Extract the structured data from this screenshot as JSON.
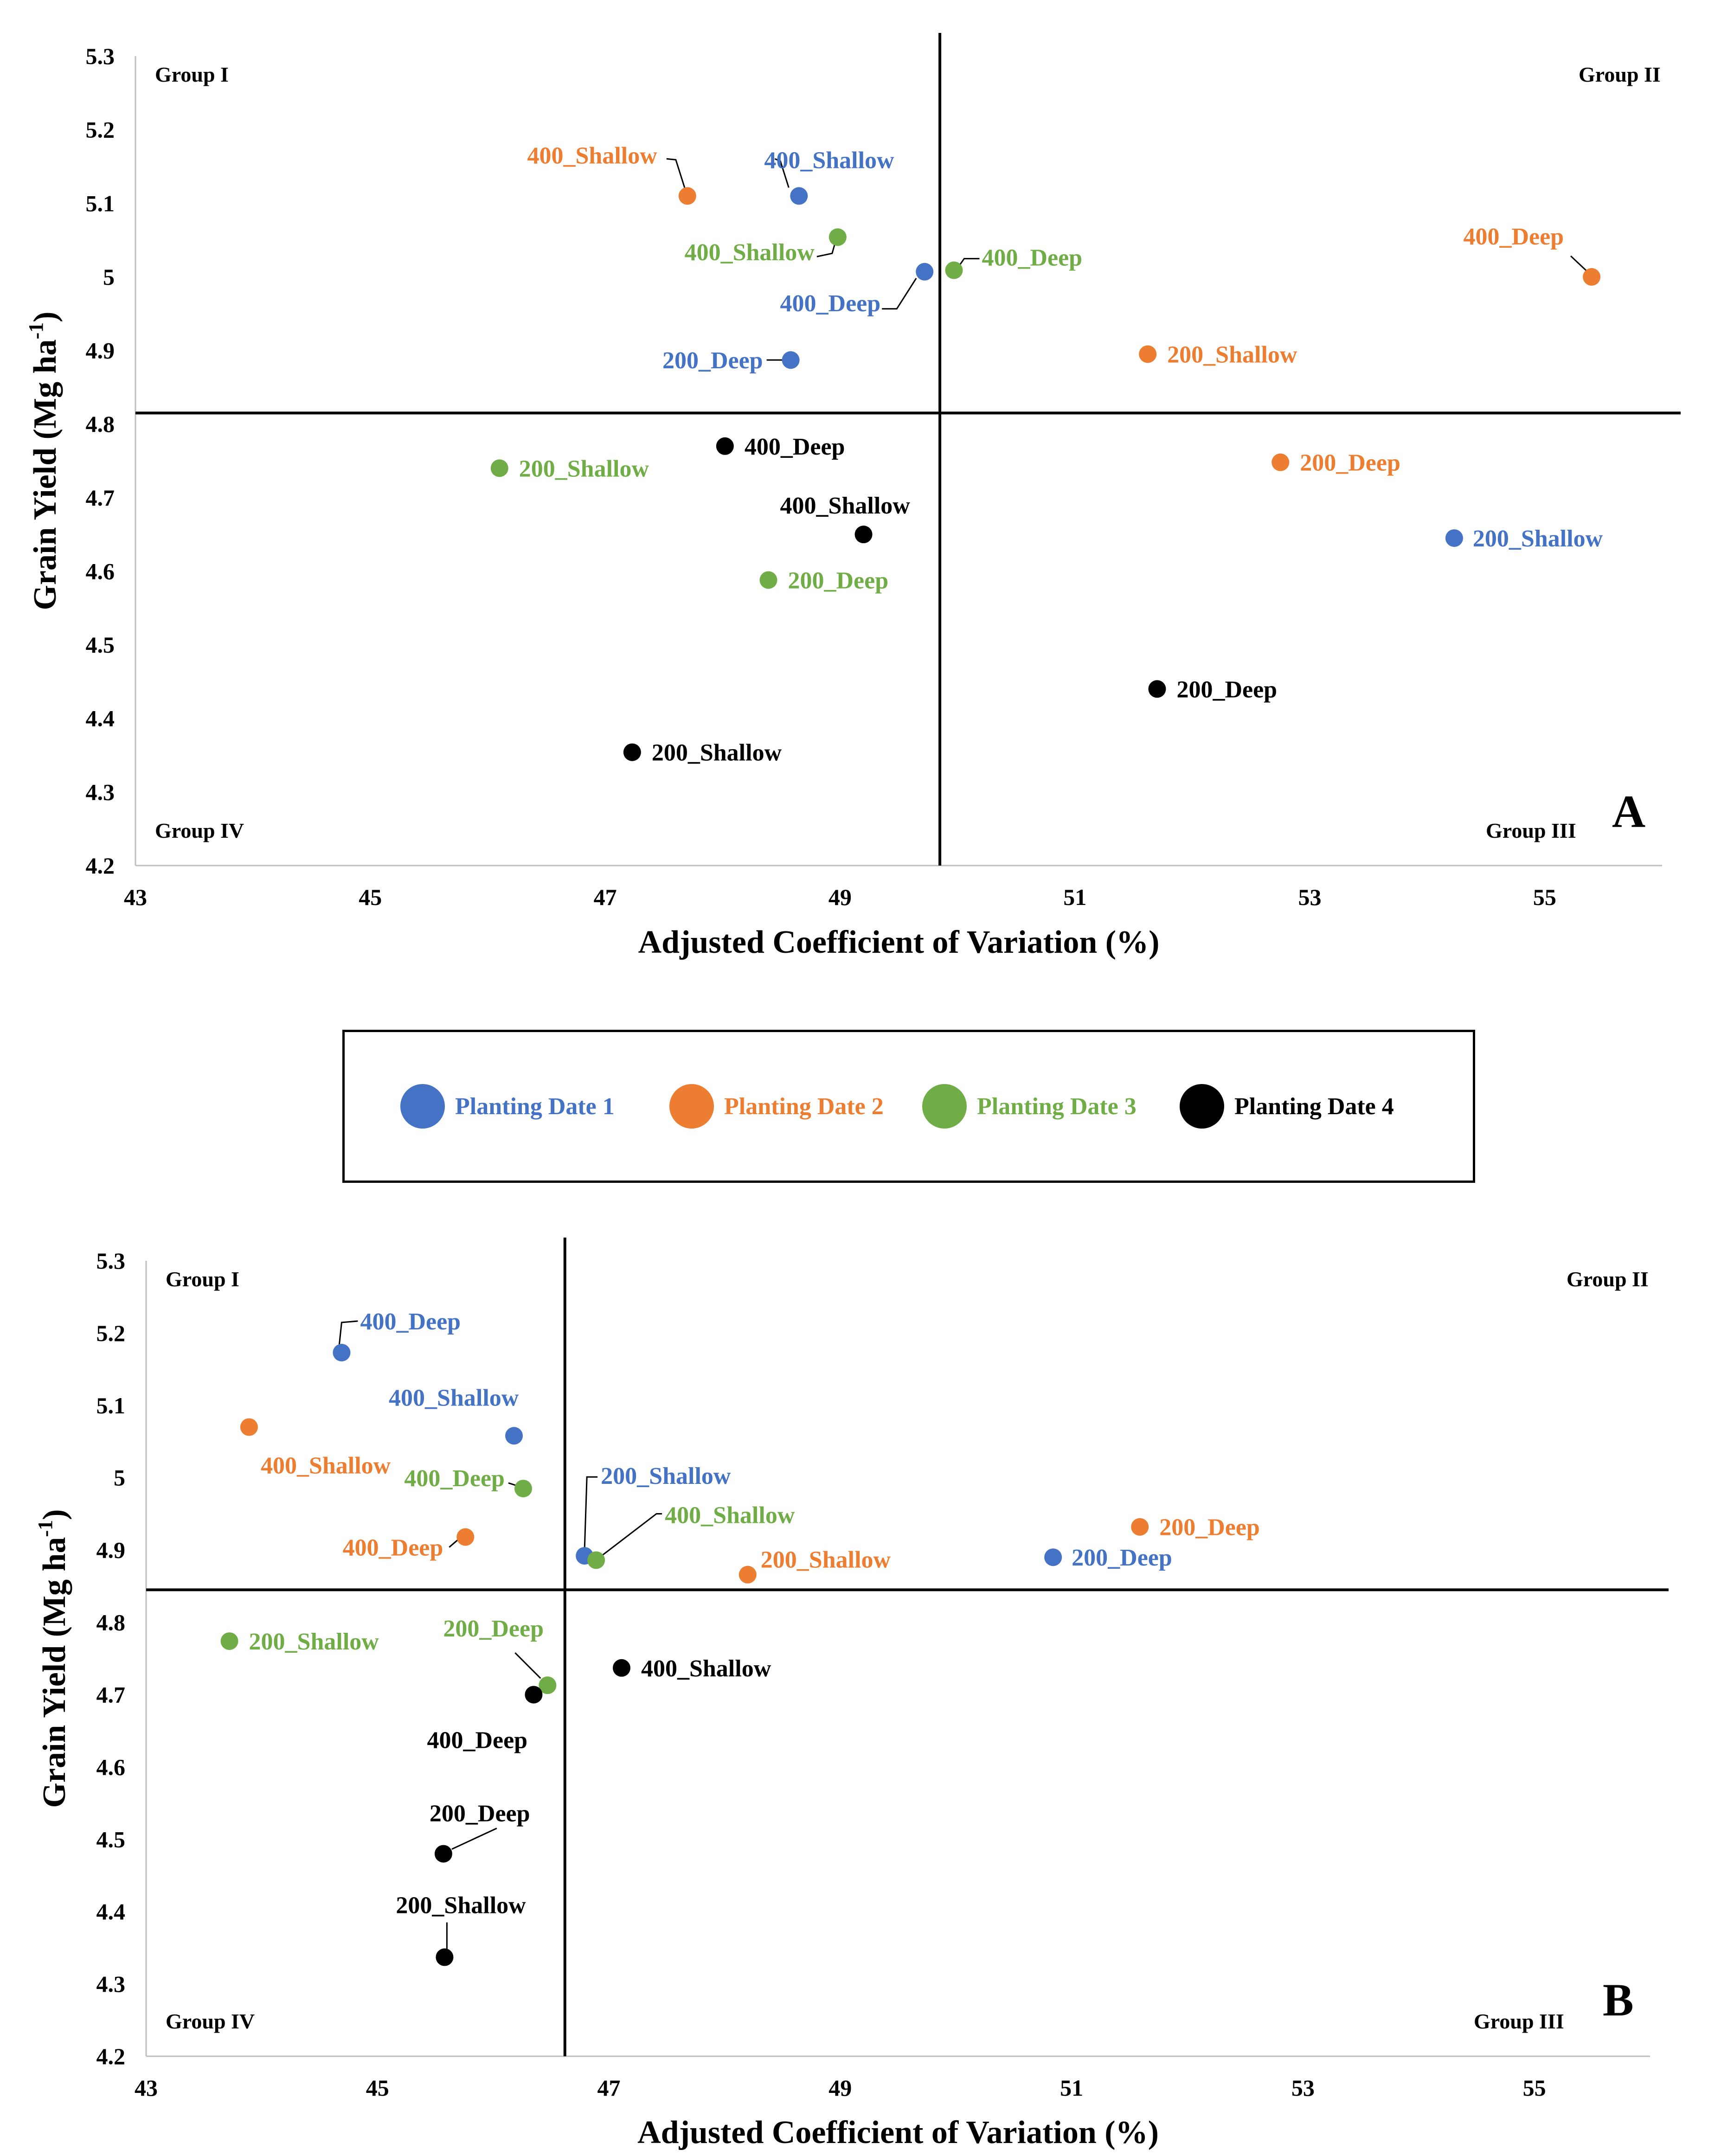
{
  "legend": {
    "items": [
      {
        "label": "Planting Date 1",
        "color": "#4472C4"
      },
      {
        "label": "Planting Date 2",
        "color": "#ED7D31"
      },
      {
        "label": "Planting Date 3",
        "color": "#70AD47"
      },
      {
        "label": "Planting Date 4",
        "color": "#000000"
      }
    ]
  },
  "chart_data": [
    {
      "type": "scatter",
      "panel_letter": "A",
      "xlabel": "Adjusted Coefficient of Variation (%)",
      "ylabel": "Grain Yield (Mg ha",
      "ylabel_sup": "-1",
      "ylabel_close": ")",
      "xlim": [
        43,
        56
      ],
      "ylim": [
        4.2,
        5.3
      ],
      "x_ticks": [
        "43",
        "45",
        "47",
        "49",
        "51",
        "53",
        "55"
      ],
      "y_ticks": [
        "4.2",
        "4.3",
        "4.4",
        "4.5",
        "4.6",
        "4.7",
        "4.8",
        "4.9",
        "5",
        "5.1",
        "5.2",
        "5.3"
      ],
      "ref_x": 49.85,
      "ref_y": 4.815,
      "groups": [
        "Group I",
        "Group II",
        "Group III",
        "Group IV"
      ],
      "points": [
        {
          "series": "Planting Date 1",
          "label": "400_Shallow",
          "x": 48.65,
          "y": 5.11
        },
        {
          "series": "Planting Date 1",
          "label": "400_Deep",
          "x": 49.72,
          "y": 5.007
        },
        {
          "series": "Planting Date 1",
          "label": "200_Deep",
          "x": 48.58,
          "y": 4.887
        },
        {
          "series": "Planting Date 1",
          "label": "200_Shallow",
          "x": 54.23,
          "y": 4.645
        },
        {
          "series": "Planting Date 2",
          "label": "400_Shallow",
          "x": 47.7,
          "y": 5.11
        },
        {
          "series": "Planting Date 2",
          "label": "400_Deep",
          "x": 55.4,
          "y": 5.0
        },
        {
          "series": "Planting Date 2",
          "label": "200_Shallow",
          "x": 51.62,
          "y": 4.895
        },
        {
          "series": "Planting Date 2",
          "label": "200_Deep",
          "x": 52.75,
          "y": 4.748
        },
        {
          "series": "Planting Date 3",
          "label": "400_Shallow",
          "x": 48.98,
          "y": 5.054
        },
        {
          "series": "Planting Date 3",
          "label": "400_Deep",
          "x": 49.97,
          "y": 5.009
        },
        {
          "series": "Planting Date 3",
          "label": "200_Shallow",
          "x": 46.1,
          "y": 4.74
        },
        {
          "series": "Planting Date 3",
          "label": "200_Deep",
          "x": 48.39,
          "y": 4.588
        },
        {
          "series": "Planting Date 4",
          "label": "400_Deep",
          "x": 48.02,
          "y": 4.77
        },
        {
          "series": "Planting Date 4",
          "label": "400_Shallow",
          "x": 49.2,
          "y": 4.65
        },
        {
          "series": "Planting Date 4",
          "label": "200_Deep",
          "x": 51.7,
          "y": 4.44
        },
        {
          "series": "Planting Date 4",
          "label": "200_Shallow",
          "x": 47.23,
          "y": 4.354
        }
      ]
    },
    {
      "type": "scatter",
      "panel_letter": "B",
      "xlabel": "Adjusted Coefficient of Variation (%)",
      "ylabel": "Grain Yield (Mg ha",
      "ylabel_sup": "-1",
      "ylabel_close": ")",
      "xlim": [
        43,
        56
      ],
      "ylim": [
        4.2,
        5.3
      ],
      "x_ticks": [
        "43",
        "45",
        "47",
        "49",
        "51",
        "53",
        "55"
      ],
      "y_ticks": [
        "4.2",
        "4.3",
        "4.4",
        "4.5",
        "4.6",
        "4.7",
        "4.8",
        "4.9",
        "5",
        "5.1",
        "5.2",
        "5.3"
      ],
      "ref_x": 46.62,
      "ref_y": 4.845,
      "groups": [
        "Group I",
        "Group II",
        "Group III",
        "Group IV"
      ],
      "points": [
        {
          "series": "Planting Date 1",
          "label": "400_Deep",
          "x": 44.69,
          "y": 5.173
        },
        {
          "series": "Planting Date 1",
          "label": "400_Shallow",
          "x": 46.18,
          "y": 5.058
        },
        {
          "series": "Planting Date 1",
          "label": "200_Shallow",
          "x": 46.79,
          "y": 4.892
        },
        {
          "series": "Planting Date 1",
          "label": "200_Deep",
          "x": 50.84,
          "y": 4.89
        },
        {
          "series": "Planting Date 2",
          "label": "400_Shallow",
          "x": 43.89,
          "y": 5.07
        },
        {
          "series": "Planting Date 2",
          "label": "400_Deep",
          "x": 45.76,
          "y": 4.918
        },
        {
          "series": "Planting Date 2",
          "label": "200_Deep",
          "x": 51.59,
          "y": 4.932
        },
        {
          "series": "Planting Date 2",
          "label": "200_Shallow",
          "x": 48.2,
          "y": 4.866
        },
        {
          "series": "Planting Date 3",
          "label": "400_Deep",
          "x": 46.26,
          "y": 4.985
        },
        {
          "series": "Planting Date 3",
          "label": "400_Shallow",
          "x": 46.89,
          "y": 4.886
        },
        {
          "series": "Planting Date 3",
          "label": "200_Shallow",
          "x": 43.72,
          "y": 4.774
        },
        {
          "series": "Planting Date 3",
          "label": "200_Deep",
          "x": 46.47,
          "y": 4.713
        },
        {
          "series": "Planting Date 4",
          "label": "400_Shallow",
          "x": 47.11,
          "y": 4.737
        },
        {
          "series": "Planting Date 4",
          "label": "400_Deep",
          "x": 46.35,
          "y": 4.7
        },
        {
          "series": "Planting Date 4",
          "label": "200_Deep",
          "x": 45.57,
          "y": 4.48
        },
        {
          "series": "Planting Date 4",
          "label": "200_Shallow",
          "x": 45.58,
          "y": 4.337
        }
      ]
    }
  ]
}
